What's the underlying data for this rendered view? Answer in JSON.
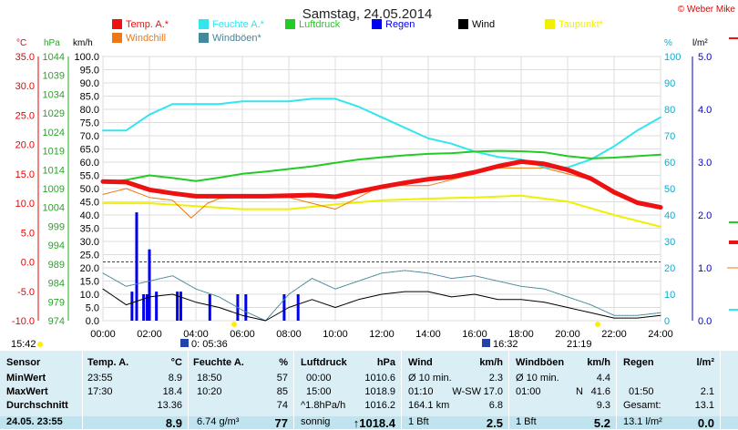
{
  "header": {
    "title": "Samstag, 24.05.2014",
    "credit": "© Weber Mike"
  },
  "colors": {
    "temp": "#ee1111",
    "feuchte": "#33e5ee",
    "luftdruck": "#22cc22",
    "regen": "#0000ee",
    "wind": "#000000",
    "taupunkt": "#f0f000",
    "windchill": "#ee7711",
    "windboen": "#448899",
    "axis_temp": "#ee0000",
    "axis_hpa": "#22aa22",
    "axis_pct": "#11aacc",
    "axis_rain": "#0000cc",
    "table_bg": "#daeef6"
  },
  "chart_data": {
    "type": "line",
    "title": "Samstag, 24.05.2014",
    "axis_units": {
      "temp": "°C",
      "pressure": "hPa",
      "wind": "km/h",
      "humidity": "%",
      "rain": "l/m²"
    },
    "x_ticks": [
      "00:00",
      "02:00",
      "04:00",
      "06:00",
      "08:00",
      "10:00",
      "12:00",
      "14:00",
      "16:00",
      "18:00",
      "20:00",
      "22:00",
      "24:00"
    ],
    "x_range_h": [
      0,
      24
    ],
    "y_temp_ticks": [
      "35.0",
      "30.0",
      "25.0",
      "20.0",
      "15.0",
      "10.0",
      "5.0",
      "0.0",
      "-5.0",
      "-10.0"
    ],
    "y_hpa_ticks": [
      "1044",
      "1039",
      "1034",
      "1029",
      "1024",
      "1019",
      "1014",
      "1009",
      "1004",
      "999",
      "994",
      "989",
      "984",
      "979",
      "974"
    ],
    "y_wind_ticks": [
      "100.0",
      "95.0",
      "90.0",
      "85.0",
      "80.0",
      "75.0",
      "70.0",
      "65.0",
      "60.0",
      "55.0",
      "50.0",
      "45.0",
      "40.0",
      "35.0",
      "30.0",
      "25.0",
      "20.0",
      "15.0",
      "10.0",
      "5.0",
      "0.0"
    ],
    "y_pct_ticks": [
      "100",
      "90",
      "80",
      "70",
      "60",
      "50",
      "40",
      "30",
      "20",
      "10",
      "0"
    ],
    "y_rain_ticks": [
      "5.0",
      "4.0",
      "3.0",
      "2.0",
      "1.0",
      "0.0"
    ],
    "y_temp_range": [
      -10,
      35
    ],
    "y_hpa_range": [
      974,
      1044
    ],
    "y_wind_range": [
      0,
      100
    ],
    "y_pct_range": [
      0,
      100
    ],
    "y_rain_range": [
      0,
      5
    ],
    "grid": true,
    "legend": [
      {
        "label": "Temp. A.*",
        "color": "#ee1111"
      },
      {
        "label": "Feuchte A.*",
        "color": "#33e5ee"
      },
      {
        "label": "Luftdruck",
        "color": "#22cc22"
      },
      {
        "label": "Regen",
        "color": "#0000ee"
      },
      {
        "label": "Wind",
        "color": "#000000"
      },
      {
        "label": "Taupunkt*",
        "color": "#f0f000"
      },
      {
        "label": "Windchill",
        "color": "#ee7711"
      },
      {
        "label": "Windböen*",
        "color": "#448899"
      }
    ],
    "series": [
      {
        "name": "Temp. A.*",
        "axis": "temp",
        "x": [
          0,
          1,
          2,
          3,
          4,
          5,
          6,
          7,
          8,
          9,
          10,
          11,
          12,
          13,
          14,
          15,
          16,
          17,
          18,
          19,
          20,
          21,
          22,
          23,
          24
        ],
        "y": [
          13.7,
          13.6,
          12.3,
          11.7,
          11.2,
          11.2,
          11.2,
          11.2,
          11.3,
          11.4,
          11.1,
          12.0,
          12.8,
          13.5,
          14.1,
          14.5,
          15.3,
          16.3,
          17.1,
          16.7,
          15.7,
          14.2,
          11.9,
          10.1,
          9.3
        ]
      },
      {
        "name": "Windchill",
        "axis": "temp",
        "x": [
          0,
          1,
          2,
          3,
          3.8,
          4.5,
          5,
          6,
          7,
          8,
          9,
          10,
          11,
          12,
          13,
          14,
          15,
          16,
          17,
          18,
          19,
          20,
          21,
          22,
          23,
          24
        ],
        "y": [
          11.5,
          12.5,
          11,
          10.5,
          7.5,
          10,
          10.8,
          11,
          11,
          11,
          10,
          9,
          11,
          13,
          13,
          13,
          14,
          15,
          16,
          16,
          16,
          15,
          14,
          11.5,
          10,
          9.3
        ]
      },
      {
        "name": "Taupunkt*",
        "axis": "temp",
        "x": [
          0,
          2,
          4,
          6,
          8,
          10,
          12,
          14,
          16,
          18,
          20,
          22,
          24
        ],
        "y": [
          10.0,
          10.0,
          9.5,
          9.0,
          9.0,
          9.8,
          10.5,
          10.8,
          11.0,
          11.3,
          10.3,
          8.0,
          6.0
        ]
      },
      {
        "name": "Feuchte A.*",
        "axis": "pct",
        "x": [
          0,
          1,
          2,
          3,
          4,
          5,
          6,
          7,
          8,
          9,
          10,
          11,
          12,
          13,
          14,
          15,
          16,
          17,
          18,
          19,
          20,
          21,
          22,
          23,
          24
        ],
        "y": [
          72,
          72,
          78,
          82,
          82,
          82,
          83,
          83,
          83,
          84,
          84,
          81,
          77,
          73,
          69,
          67,
          64,
          62,
          61,
          58,
          58,
          61,
          66,
          72,
          77
        ]
      },
      {
        "name": "Luftdruck",
        "axis": "hpa",
        "x": [
          0,
          1,
          2,
          3,
          4,
          5,
          6,
          7,
          8,
          9,
          10,
          11,
          12,
          13,
          14,
          15,
          16,
          17,
          18,
          19,
          20,
          21,
          22,
          23,
          24
        ],
        "y": [
          1010.6,
          1011.3,
          1012.5,
          1011.8,
          1011.0,
          1011.9,
          1012.9,
          1013.5,
          1014.2,
          1014.9,
          1015.8,
          1016.7,
          1017.3,
          1017.8,
          1018.2,
          1018.4,
          1018.8,
          1019.0,
          1018.9,
          1018.6,
          1017.6,
          1017.0,
          1017.2,
          1017.6,
          1018.0
        ]
      },
      {
        "name": "Wind",
        "axis": "wind",
        "x": [
          0,
          1,
          2,
          3,
          4,
          5,
          6,
          7,
          8,
          9,
          10,
          11,
          12,
          13,
          14,
          15,
          16,
          17,
          18,
          19,
          20,
          21,
          22,
          23,
          24
        ],
        "y": [
          12,
          6,
          9,
          10,
          7,
          5,
          2,
          0,
          5,
          8,
          5,
          8,
          10,
          11,
          11,
          9,
          10,
          8,
          8,
          7,
          5,
          3,
          1,
          1,
          2
        ]
      },
      {
        "name": "Windböen*",
        "axis": "wind",
        "x": [
          0,
          1,
          2,
          3,
          4,
          5,
          6,
          7,
          8,
          9,
          10,
          11,
          12,
          13,
          14,
          15,
          16,
          17,
          18,
          19,
          20,
          21,
          22,
          23,
          24
        ],
        "y": [
          18,
          13,
          15,
          17,
          12,
          9,
          4,
          0,
          10,
          16,
          12,
          15,
          18,
          19,
          18,
          16,
          17,
          15,
          13,
          12,
          9,
          6,
          2,
          2,
          3
        ]
      },
      {
        "name": "Regen",
        "axis": "rain",
        "type": "bar",
        "x": [
          1.25,
          1.45,
          1.75,
          1.9,
          2.0,
          2.3,
          3.2,
          3.35,
          4.6,
          5.8,
          6.15,
          7.8,
          8.4
        ],
        "y": [
          0.55,
          2.05,
          0.5,
          0.5,
          1.35,
          0.55,
          0.55,
          0.55,
          0.5,
          0.5,
          0.5,
          0.5,
          0.5
        ]
      }
    ]
  },
  "time_markers": {
    "left": "15:42",
    "sunrise": "05:36",
    "sunrise_prefix": "0:",
    "moon": "16:32",
    "sunset": "21:19"
  },
  "table": {
    "sensor": {
      "header": "Sensor",
      "rows": [
        "MinWert",
        "MaxWert",
        "Durchschnitt",
        "24.05. 23:55"
      ]
    },
    "temp": {
      "header": "Temp. A.",
      "unit": "°C",
      "rows": [
        [
          "23:55",
          "8.9"
        ],
        [
          "17:30",
          "18.4"
        ],
        [
          "",
          "13.36"
        ],
        [
          "",
          "8.9"
        ]
      ]
    },
    "feuchte": {
      "header": "Feuchte A.",
      "unit": "%",
      "rows": [
        [
          "18:50",
          "57"
        ],
        [
          "10:20",
          "85"
        ],
        [
          "",
          "74"
        ],
        [
          "6.74 g/m³",
          "77"
        ]
      ]
    },
    "luftdruck": {
      "header": "Luftdruck",
      "unit": "hPa",
      "rows": [
        [
          "00:00",
          "1010.6"
        ],
        [
          "15:00",
          "1018.9"
        ],
        [
          "^1.8hPa/h",
          "1016.2"
        ],
        [
          "sonnig",
          "↑1018.4"
        ]
      ]
    },
    "wind": {
      "header": "Wind",
      "unit": "km/h",
      "rows": [
        [
          "Ø 10 min.",
          "",
          "2.3"
        ],
        [
          "01:10",
          "W-SW",
          "17.0"
        ],
        [
          "164.1 km",
          "",
          "6.8"
        ],
        [
          "1 Bft",
          "",
          "2.5"
        ]
      ]
    },
    "windboen": {
      "header": "Windböen",
      "unit": "km/h",
      "rows": [
        [
          "Ø 10 min.",
          "",
          "4.4"
        ],
        [
          "01:00",
          "N",
          "41.6"
        ],
        [
          "",
          "",
          "9.3"
        ],
        [
          "1 Bft",
          "",
          "5.2"
        ]
      ]
    },
    "regen": {
      "header": "Regen",
      "unit": "l/m²",
      "rows": [
        [
          "",
          ""
        ],
        [
          "01:50",
          "2.1"
        ],
        [
          "Gesamt:",
          "13.1"
        ],
        [
          "13.1 l/m²",
          "0.0"
        ]
      ]
    }
  }
}
